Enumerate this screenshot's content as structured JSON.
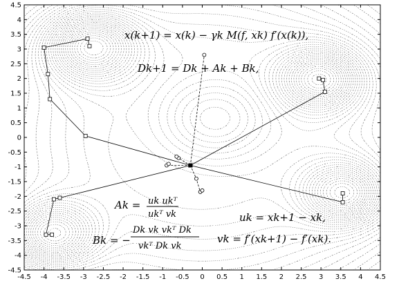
{
  "chart_data": {
    "type": "line",
    "title": "",
    "xlabel": "",
    "ylabel": "",
    "xlim": [
      -4.5,
      4.5
    ],
    "ylim": [
      -4.5,
      4.5
    ],
    "xticks": [
      "-4.5",
      "-4",
      "-3.5",
      "-3",
      "-2.5",
      "-2",
      "-1.5",
      "-1",
      "-0.5",
      "0",
      "0.5",
      "1",
      "1.5",
      "2",
      "2.5",
      "3",
      "3.5",
      "4",
      "4.5"
    ],
    "yticks": [
      "4.5",
      "4",
      "3.5",
      "3",
      "2.5",
      "2",
      "1.5",
      "1",
      "0.5",
      "0",
      "-0.5",
      "-1",
      "-1.5",
      "-2",
      "-2.5",
      "-3",
      "-3.5",
      "-4",
      "-4.5"
    ],
    "grid": false,
    "background": "dotted contour lines of the objective function",
    "series": [
      {
        "marker": "square",
        "style": "solid",
        "x": [
          -0.3,
          -2.95,
          -3.85,
          -3.9,
          -4.0,
          -2.9,
          -2.85
        ],
        "y": [
          -0.95,
          0.05,
          1.3,
          2.15,
          3.05,
          3.35,
          3.1
        ]
      },
      {
        "marker": "square",
        "style": "solid",
        "x": [
          -0.3,
          3.1,
          3.05,
          2.95
        ],
        "y": [
          -0.95,
          1.55,
          1.95,
          2.0
        ]
      },
      {
        "marker": "square",
        "style": "solid",
        "x": [
          -0.3,
          -3.6,
          -3.75,
          -3.95,
          -3.8
        ],
        "y": [
          -0.95,
          -2.05,
          -2.1,
          -3.3,
          -3.3
        ]
      },
      {
        "marker": "square",
        "style": "solid",
        "x": [
          -0.3,
          3.55,
          3.55
        ],
        "y": [
          -0.95,
          -2.2,
          -1.9
        ]
      },
      {
        "marker": "circle",
        "style": "dashed",
        "x": [
          -0.3,
          0.05
        ],
        "y": [
          -0.95,
          2.8
        ]
      },
      {
        "marker": "circle",
        "style": "dashed",
        "x": [
          -0.3,
          -0.6,
          -0.65
        ],
        "y": [
          -0.95,
          -0.7,
          -0.65
        ]
      },
      {
        "marker": "circle",
        "style": "dashed",
        "x": [
          -0.3,
          -0.15,
          -0.05,
          0.0
        ],
        "y": [
          -0.95,
          -1.4,
          -1.85,
          -1.8
        ]
      },
      {
        "marker": "circle",
        "style": "dashed",
        "x": [
          -0.3,
          -0.9,
          -0.85
        ],
        "y": [
          -0.95,
          -0.95,
          -0.9
        ]
      }
    ],
    "annotations": [
      "x^{(k+1)} = x^{(k)} − γ_k M(f, x_k) f′(x^{(k)}),",
      "D_{k+1} = D_k + A_k + B_k,",
      "A_k = u_k u_k^T / (u_k^T v_k),",
      "B_k = − D_k v_k v_k^T D_k / (v_k^T D_k v_k),",
      "u_k = x_{k+1} − x_k,",
      "v_k = f′(x_{k+1}) − f′(x_k)."
    ],
    "minima": [
      [
        -2.8,
        3.1
      ],
      [
        3.0,
        2.0
      ],
      [
        -3.8,
        -3.3
      ],
      [
        3.6,
        -1.9
      ]
    ],
    "saddle_point": [
      -0.3,
      -0.95
    ]
  },
  "equations": {
    "eq1": "x(k+1) = x(k) − γk M(f, xk) f′(x(k)),",
    "eq2": "Dk+1 = Dk + Ak + Bk,",
    "eq3_lhs": "Ak =",
    "eq3_num": "uk ukᵀ",
    "eq3_den": "ukᵀ vk",
    "eq4_lhs": "Bk = −",
    "eq4_num": "Dk vk vkᵀ Dk",
    "eq4_den": "vkᵀ Dk vk",
    "eq5": "uk = xk+1 − xk,",
    "eq6": "vk = f′(xk+1) − f′(xk)."
  }
}
